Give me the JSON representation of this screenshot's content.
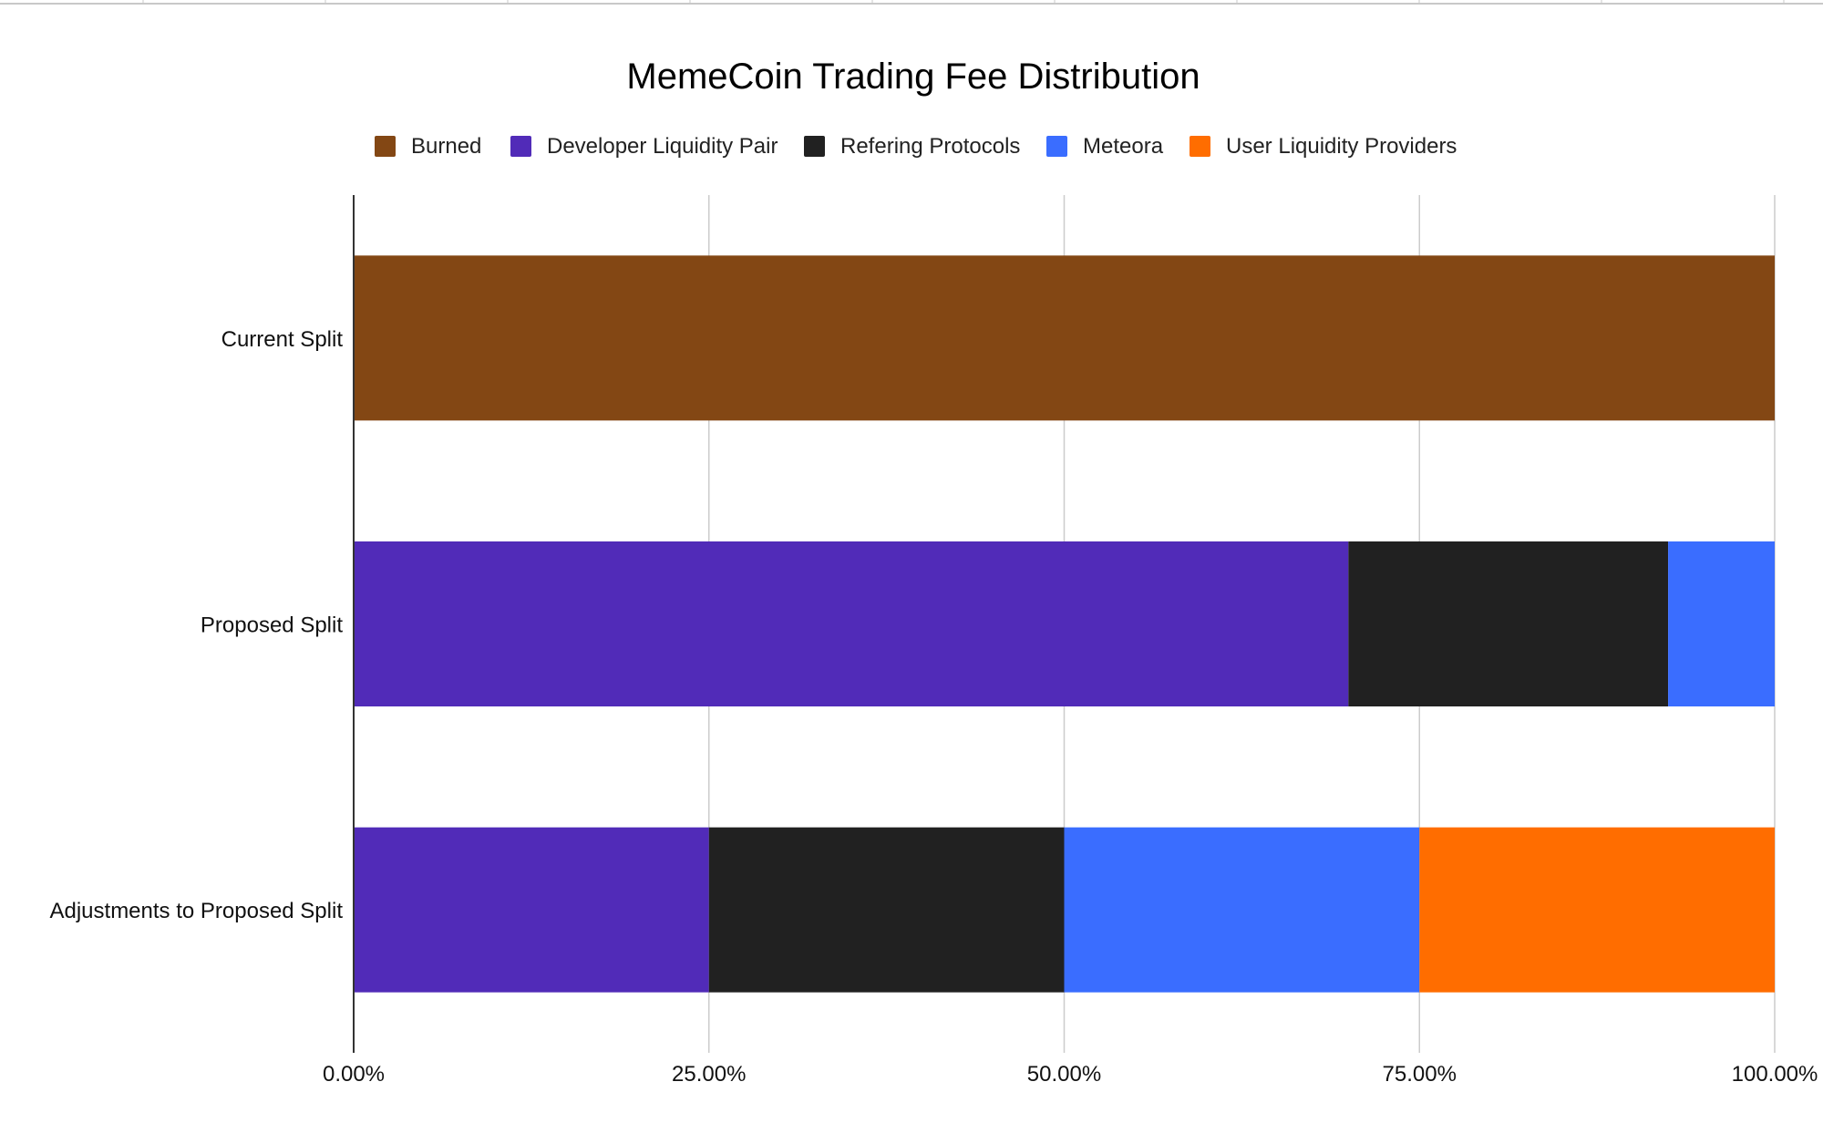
{
  "chart_data": {
    "type": "bar",
    "orientation": "horizontal",
    "stacked": "percent",
    "title": "MemeCoin Trading Fee Distribution",
    "xlabel": "",
    "ylabel": "",
    "categories": [
      "Current Split",
      "Proposed Split",
      "Adjustments to Proposed Split"
    ],
    "series": [
      {
        "name": "Burned",
        "color": "#834714",
        "values": [
          1.0,
          0.0,
          0.0
        ]
      },
      {
        "name": "Developer Liquidity Pair",
        "color": "#512bb8",
        "values": [
          0.0,
          0.7,
          0.25
        ]
      },
      {
        "name": "Refering Protocols",
        "color": "#212121",
        "values": [
          0.0,
          0.225,
          0.25
        ]
      },
      {
        "name": "Meteora",
        "color": "#3a6dff",
        "values": [
          0.0,
          0.075,
          0.25
        ]
      },
      {
        "name": "User Liquidity Providers",
        "color": "#ff6d00",
        "values": [
          0.0,
          0.0,
          0.25
        ]
      }
    ],
    "xlim": [
      0,
      1
    ],
    "xticks": [
      0,
      0.25,
      0.5,
      0.75,
      1.0
    ],
    "xtick_labels": [
      "0.00%",
      "25.00%",
      "50.00%",
      "75.00%",
      "100.00%"
    ],
    "grid": true,
    "legend_position": "top"
  }
}
